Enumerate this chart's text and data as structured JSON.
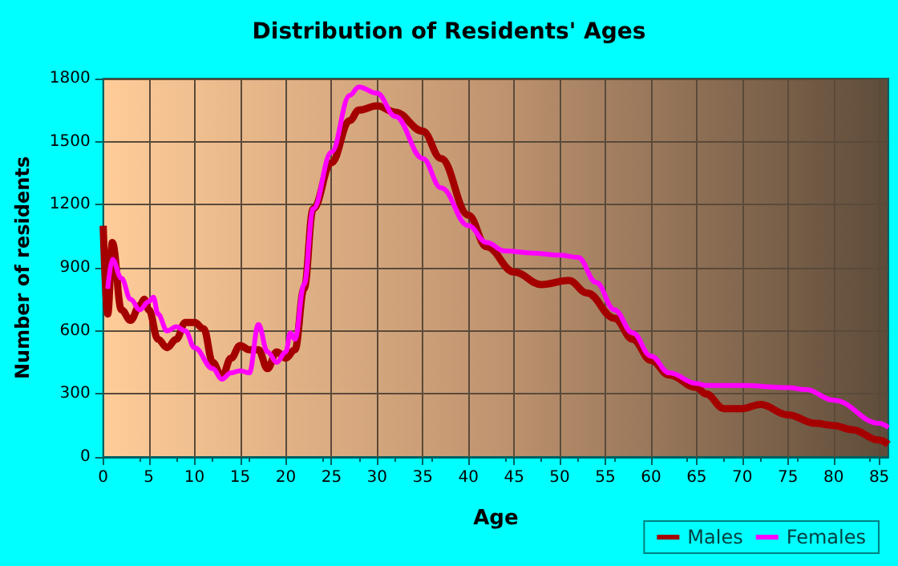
{
  "chart_data": {
    "type": "line",
    "title": "Distribution of Residents' Ages",
    "xlabel": "Age",
    "ylabel": "Number of residents",
    "xlim": [
      0,
      86
    ],
    "xticks": [
      0,
      5,
      10,
      15,
      20,
      25,
      30,
      35,
      40,
      45,
      50,
      55,
      60,
      65,
      70,
      75,
      80,
      85
    ],
    "ylim": [
      0,
      1800
    ],
    "yticks": [
      0,
      300,
      600,
      900,
      1200,
      1500,
      1800
    ],
    "grid": true,
    "legend": "bottom right",
    "marker": "none",
    "line_style": "solid",
    "series": [
      {
        "name": "Males",
        "color": "#a50000",
        "x": [
          0,
          0.5,
          1,
          2,
          3,
          4,
          4.5,
          5,
          6,
          7,
          8,
          9,
          10,
          11,
          12,
          13,
          14,
          15,
          16,
          17,
          18,
          19,
          20,
          21,
          22,
          23,
          25,
          27,
          28,
          30,
          32,
          35,
          37,
          40,
          42,
          45,
          48,
          51,
          53,
          56,
          58,
          60,
          62,
          65,
          66,
          68,
          70,
          72,
          75,
          78,
          80,
          82,
          85,
          86
        ],
        "values": [
          1100,
          680,
          1020,
          700,
          650,
          720,
          750,
          700,
          560,
          520,
          560,
          640,
          640,
          610,
          450,
          380,
          470,
          530,
          510,
          510,
          420,
          500,
          470,
          510,
          800,
          1180,
          1400,
          1600,
          1650,
          1670,
          1640,
          1550,
          1420,
          1150,
          1000,
          880,
          820,
          840,
          780,
          660,
          560,
          460,
          390,
          330,
          300,
          230,
          230,
          250,
          200,
          160,
          150,
          130,
          80,
          60
        ]
      },
      {
        "name": "Females",
        "color": "#ff00ff",
        "x": [
          0.5,
          1,
          2,
          3,
          4,
          5,
          5.5,
          6,
          7,
          8,
          9,
          10,
          12,
          13,
          14,
          15,
          16,
          17,
          18,
          19,
          20,
          20.5,
          21,
          22,
          23,
          25,
          27,
          28,
          30,
          32,
          35,
          37,
          40,
          42,
          44,
          47,
          50,
          52,
          54,
          56,
          58,
          60,
          62,
          65,
          66,
          68,
          70,
          75,
          77,
          80,
          85,
          86
        ],
        "values": [
          800,
          940,
          850,
          750,
          700,
          740,
          760,
          680,
          600,
          620,
          600,
          520,
          420,
          370,
          400,
          410,
          400,
          630,
          500,
          450,
          500,
          590,
          560,
          820,
          1180,
          1450,
          1720,
          1760,
          1730,
          1620,
          1420,
          1280,
          1100,
          1020,
          980,
          970,
          960,
          950,
          830,
          700,
          590,
          480,
          400,
          350,
          340,
          340,
          340,
          330,
          320,
          270,
          160,
          140
        ]
      }
    ]
  }
}
